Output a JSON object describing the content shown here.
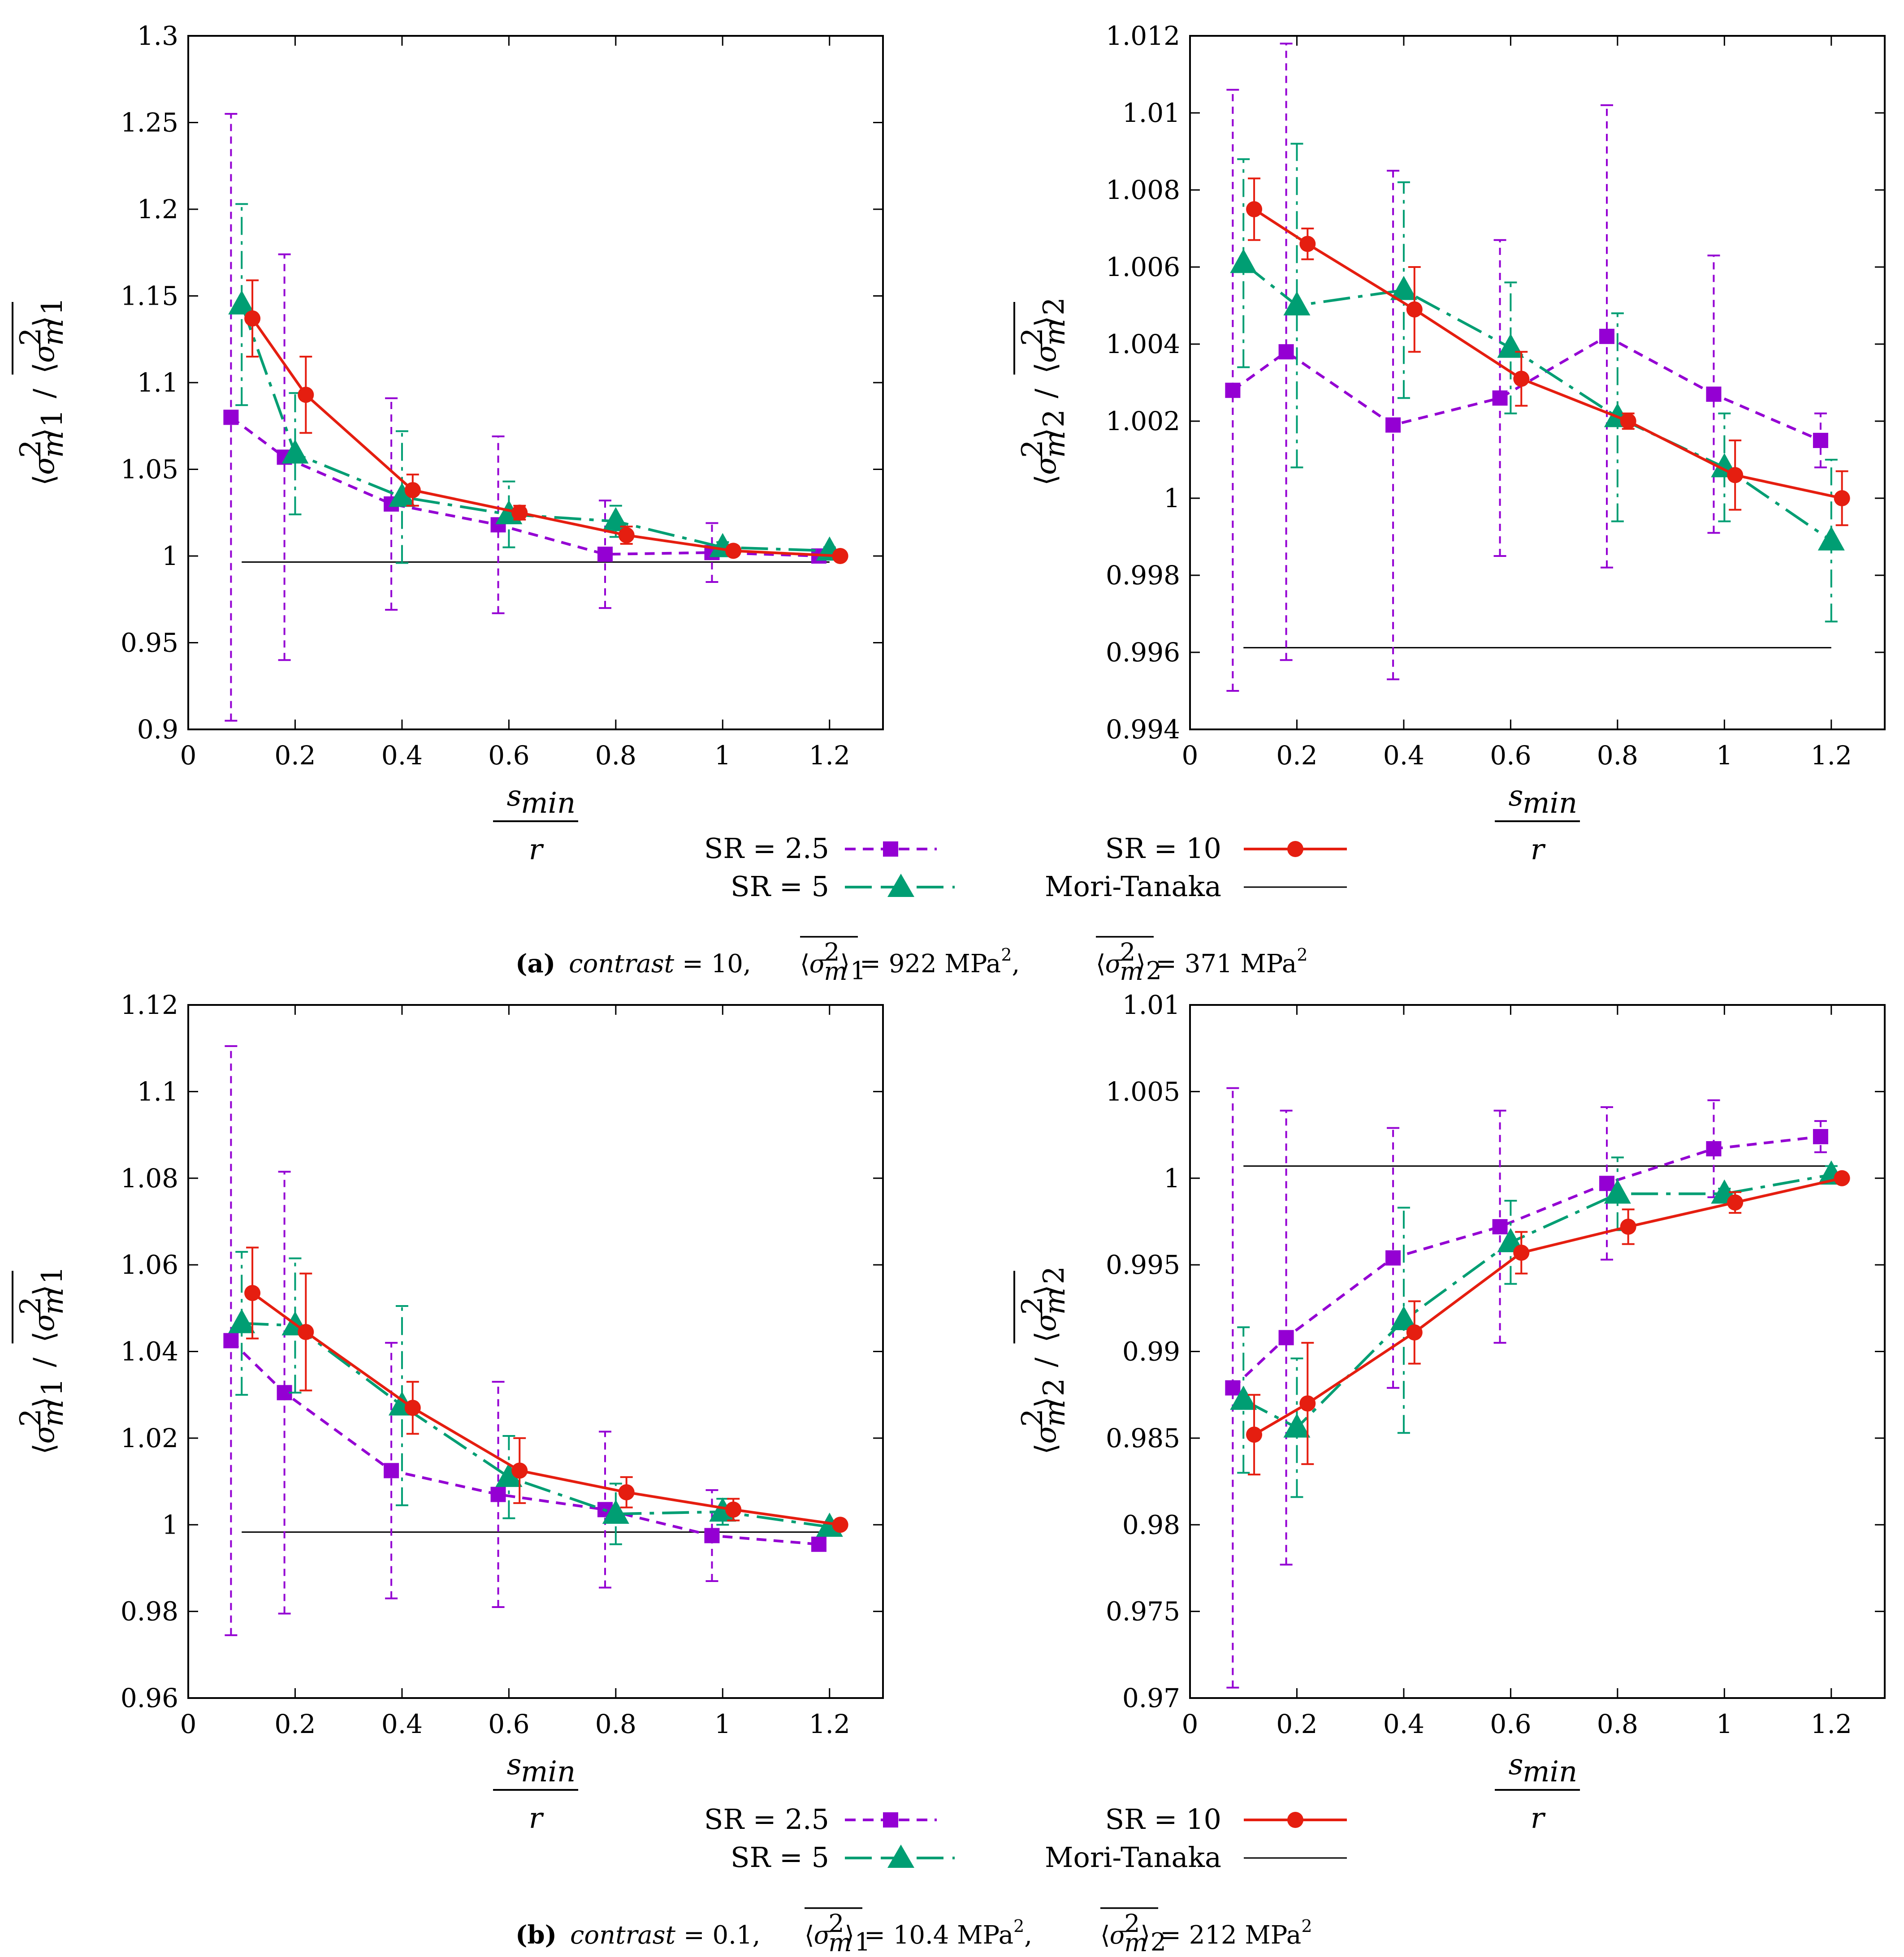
{
  "colors": {
    "sr25": "#9400d3",
    "sr5": "#009e73",
    "sr10": "#e51e10",
    "mt": "#000000"
  },
  "legend": {
    "sr25": "SR = 2.5",
    "sr5": "SR = 5",
    "sr10": "SR = 10",
    "mt": "Mori-Tanaka"
  },
  "xlabel": {
    "num": "s",
    "sub": "min",
    "den": "r"
  },
  "captions": {
    "a": {
      "letter": "(a)",
      "word": "contrast",
      "rest": " = 10, ",
      "v1": " = 922 MPa",
      "sep": ", ",
      "v2": " = 371 MPa"
    },
    "b": {
      "letter": "(b)",
      "word": "contrast",
      "rest": " = 0.1, ",
      "v1": " = 10.4 MPa",
      "sep": ", ",
      "v2": " = 212 MPa"
    }
  },
  "chart_data": [
    {
      "id": "a1",
      "type": "line",
      "ylabel": "⟨σm²⟩1 / ⟨σm²⟩1 (averaged)",
      "xlim": [
        0,
        1.3
      ],
      "ylim": [
        0.9,
        1.3
      ],
      "xticks": [
        0,
        0.2,
        0.4,
        0.6,
        0.8,
        1,
        1.2
      ],
      "yticks": [
        0.9,
        0.95,
        1,
        1.05,
        1.1,
        1.15,
        1.2,
        1.25,
        1.3
      ],
      "xtick_labels": [
        "0",
        "0.2",
        "0.4",
        "0.6",
        "0.8",
        "1",
        "1.2"
      ],
      "ytick_labels": [
        "0.9",
        "0.95",
        "1",
        "1.05",
        "1.1",
        "1.15",
        "1.2",
        "1.25",
        "1.3"
      ],
      "series": [
        {
          "name": "SR = 2.5",
          "key": "sr25",
          "x": [
            0.08,
            0.18,
            0.38,
            0.58,
            0.78,
            0.98,
            1.18
          ],
          "y": [
            1.08,
            1.057,
            1.03,
            1.018,
            1.001,
            1.002,
            1.0
          ],
          "err": [
            0.175,
            0.117,
            0.061,
            0.051,
            0.031,
            0.017,
            0.001
          ]
        },
        {
          "name": "SR = 5",
          "key": "sr5",
          "x": [
            0.1,
            0.2,
            0.4,
            0.6,
            0.8,
            1.0,
            1.2
          ],
          "y": [
            1.145,
            1.059,
            1.034,
            1.024,
            1.02,
            1.005,
            1.003
          ],
          "err": [
            0.058,
            0.035,
            0.038,
            0.019,
            0.009,
            0.003,
            0.002
          ]
        },
        {
          "name": "SR = 10",
          "key": "sr10",
          "x": [
            0.12,
            0.22,
            0.42,
            0.62,
            0.82,
            1.02,
            1.22
          ],
          "y": [
            1.137,
            1.093,
            1.038,
            1.025,
            1.012,
            1.003,
            1.0
          ],
          "err": [
            0.022,
            0.022,
            0.009,
            0.004,
            0.005,
            0.002,
            0.001
          ]
        }
      ],
      "reference": {
        "name": "Mori-Tanaka",
        "x": [
          0.1,
          1.2
        ],
        "y": 0.9965
      }
    },
    {
      "id": "a2",
      "type": "line",
      "ylabel": "⟨σm²⟩2 / ⟨σm²⟩2 (averaged)",
      "xlim": [
        0,
        1.3
      ],
      "ylim": [
        0.994,
        1.012
      ],
      "xticks": [
        0,
        0.2,
        0.4,
        0.6,
        0.8,
        1,
        1.2
      ],
      "yticks": [
        0.994,
        0.996,
        0.998,
        1,
        1.002,
        1.004,
        1.006,
        1.008,
        1.01,
        1.012
      ],
      "xtick_labels": [
        "0",
        "0.2",
        "0.4",
        "0.6",
        "0.8",
        "1",
        "1.2"
      ],
      "ytick_labels": [
        "0.994",
        "0.996",
        "0.998",
        "1",
        "1.002",
        "1.004",
        "1.006",
        "1.008",
        "1.01",
        "1.012"
      ],
      "series": [
        {
          "name": "SR = 2.5",
          "key": "sr25",
          "x": [
            0.08,
            0.18,
            0.38,
            0.58,
            0.78,
            0.98,
            1.18
          ],
          "y": [
            1.0028,
            1.0038,
            1.0019,
            1.0026,
            1.0042,
            1.0027,
            1.0015
          ],
          "err": [
            0.0078,
            0.008,
            0.0066,
            0.0041,
            0.006,
            0.0036,
            0.0007
          ]
        },
        {
          "name": "SR = 5",
          "key": "sr5",
          "x": [
            0.1,
            0.2,
            0.4,
            0.6,
            0.8,
            1.0,
            1.2
          ],
          "y": [
            1.0061,
            1.005,
            1.0054,
            1.0039,
            1.0021,
            1.0008,
            0.9989
          ],
          "err": [
            0.0027,
            0.0042,
            0.0028,
            0.0017,
            0.0027,
            0.0014,
            0.0021
          ]
        },
        {
          "name": "SR = 10",
          "key": "sr10",
          "x": [
            0.12,
            0.22,
            0.42,
            0.62,
            0.82,
            1.02,
            1.22
          ],
          "y": [
            1.0075,
            1.0066,
            1.0049,
            1.0031,
            1.002,
            1.0006,
            1.0
          ],
          "err": [
            0.0008,
            0.0004,
            0.0011,
            0.0007,
            0.0002,
            0.0009,
            0.0007
          ]
        }
      ],
      "reference": {
        "name": "Mori-Tanaka",
        "x": [
          0.1,
          1.2
        ],
        "y": 0.99612
      }
    },
    {
      "id": "b1",
      "type": "line",
      "ylabel": "⟨σm²⟩1 / ⟨σm²⟩1 (averaged)",
      "xlim": [
        0,
        1.3
      ],
      "ylim": [
        0.96,
        1.12
      ],
      "xticks": [
        0,
        0.2,
        0.4,
        0.6,
        0.8,
        1,
        1.2
      ],
      "yticks": [
        0.96,
        0.98,
        1,
        1.02,
        1.04,
        1.06,
        1.08,
        1.1,
        1.12
      ],
      "xtick_labels": [
        "0",
        "0.2",
        "0.4",
        "0.6",
        "0.8",
        "1",
        "1.2"
      ],
      "ytick_labels": [
        "0.96",
        "0.98",
        "1",
        "1.02",
        "1.04",
        "1.06",
        "1.08",
        "1.1",
        "1.12"
      ],
      "series": [
        {
          "name": "SR = 2.5",
          "key": "sr25",
          "x": [
            0.08,
            0.18,
            0.38,
            0.58,
            0.78,
            0.98,
            1.18
          ],
          "y": [
            1.0425,
            1.0305,
            1.0125,
            1.007,
            1.0035,
            0.9975,
            0.9955
          ],
          "err": [
            0.068,
            0.051,
            0.0295,
            0.026,
            0.018,
            0.0105,
            0.0015
          ]
        },
        {
          "name": "SR = 5",
          "key": "sr5",
          "x": [
            0.1,
            0.2,
            0.4,
            0.6,
            0.8,
            1.0,
            1.2
          ],
          "y": [
            1.0465,
            1.046,
            1.0275,
            1.011,
            1.0025,
            1.003,
            0.9995
          ],
          "err": [
            0.0165,
            0.0155,
            0.023,
            0.0095,
            0.007,
            0.003,
            0.001
          ]
        },
        {
          "name": "SR = 10",
          "key": "sr10",
          "x": [
            0.12,
            0.22,
            0.42,
            0.62,
            0.82,
            1.02,
            1.22
          ],
          "y": [
            1.0535,
            1.0445,
            1.027,
            1.0125,
            1.0075,
            1.0035,
            1.0
          ],
          "err": [
            0.0105,
            0.0135,
            0.006,
            0.0075,
            0.0035,
            0.0025,
            0.0005
          ]
        }
      ],
      "reference": {
        "name": "Mori-Tanaka",
        "x": [
          0.1,
          1.2
        ],
        "y": 0.9983
      }
    },
    {
      "id": "b2",
      "type": "line",
      "ylabel": "⟨σm²⟩2 / ⟨σm²⟩2 (averaged)",
      "xlim": [
        0,
        1.3
      ],
      "ylim": [
        0.97,
        1.01
      ],
      "xticks": [
        0,
        0.2,
        0.4,
        0.6,
        0.8,
        1,
        1.2
      ],
      "yticks": [
        0.97,
        0.975,
        0.98,
        0.985,
        0.99,
        0.995,
        1,
        1.005,
        1.01
      ],
      "xtick_labels": [
        "0",
        "0.2",
        "0.4",
        "0.6",
        "0.8",
        "1",
        "1.2"
      ],
      "ytick_labels": [
        "0.97",
        "0.975",
        "0.98",
        "0.985",
        "0.99",
        "0.995",
        "1",
        "1.005",
        "1.01"
      ],
      "series": [
        {
          "name": "SR = 2.5",
          "key": "sr25",
          "x": [
            0.08,
            0.18,
            0.38,
            0.58,
            0.78,
            0.98,
            1.18
          ],
          "y": [
            0.9879,
            0.9908,
            0.9954,
            0.9972,
            0.9997,
            1.0017,
            1.0024
          ],
          "err": [
            0.0173,
            0.0131,
            0.0075,
            0.0067,
            0.0044,
            0.0028,
            0.0009
          ]
        },
        {
          "name": "SR = 5",
          "key": "sr5",
          "x": [
            0.1,
            0.2,
            0.4,
            0.6,
            0.8,
            1.0,
            1.2
          ],
          "y": [
            0.9872,
            0.9856,
            0.9918,
            0.9963,
            0.9991,
            0.9991,
            1.0002
          ],
          "err": [
            0.0042,
            0.004,
            0.0065,
            0.0024,
            0.0021,
            0.0003,
            0.0005
          ]
        },
        {
          "name": "SR = 10",
          "key": "sr10",
          "x": [
            0.12,
            0.22,
            0.42,
            0.62,
            0.82,
            1.02,
            1.22
          ],
          "y": [
            0.9852,
            0.987,
            0.9911,
            0.9957,
            0.9972,
            0.9986,
            1.0
          ],
          "err": [
            0.0023,
            0.0035,
            0.0018,
            0.0012,
            0.001,
            0.0006,
            0.0002
          ]
        }
      ],
      "reference": {
        "name": "Mori-Tanaka",
        "x": [
          0.1,
          1.2
        ],
        "y": 1.0007
      }
    }
  ]
}
